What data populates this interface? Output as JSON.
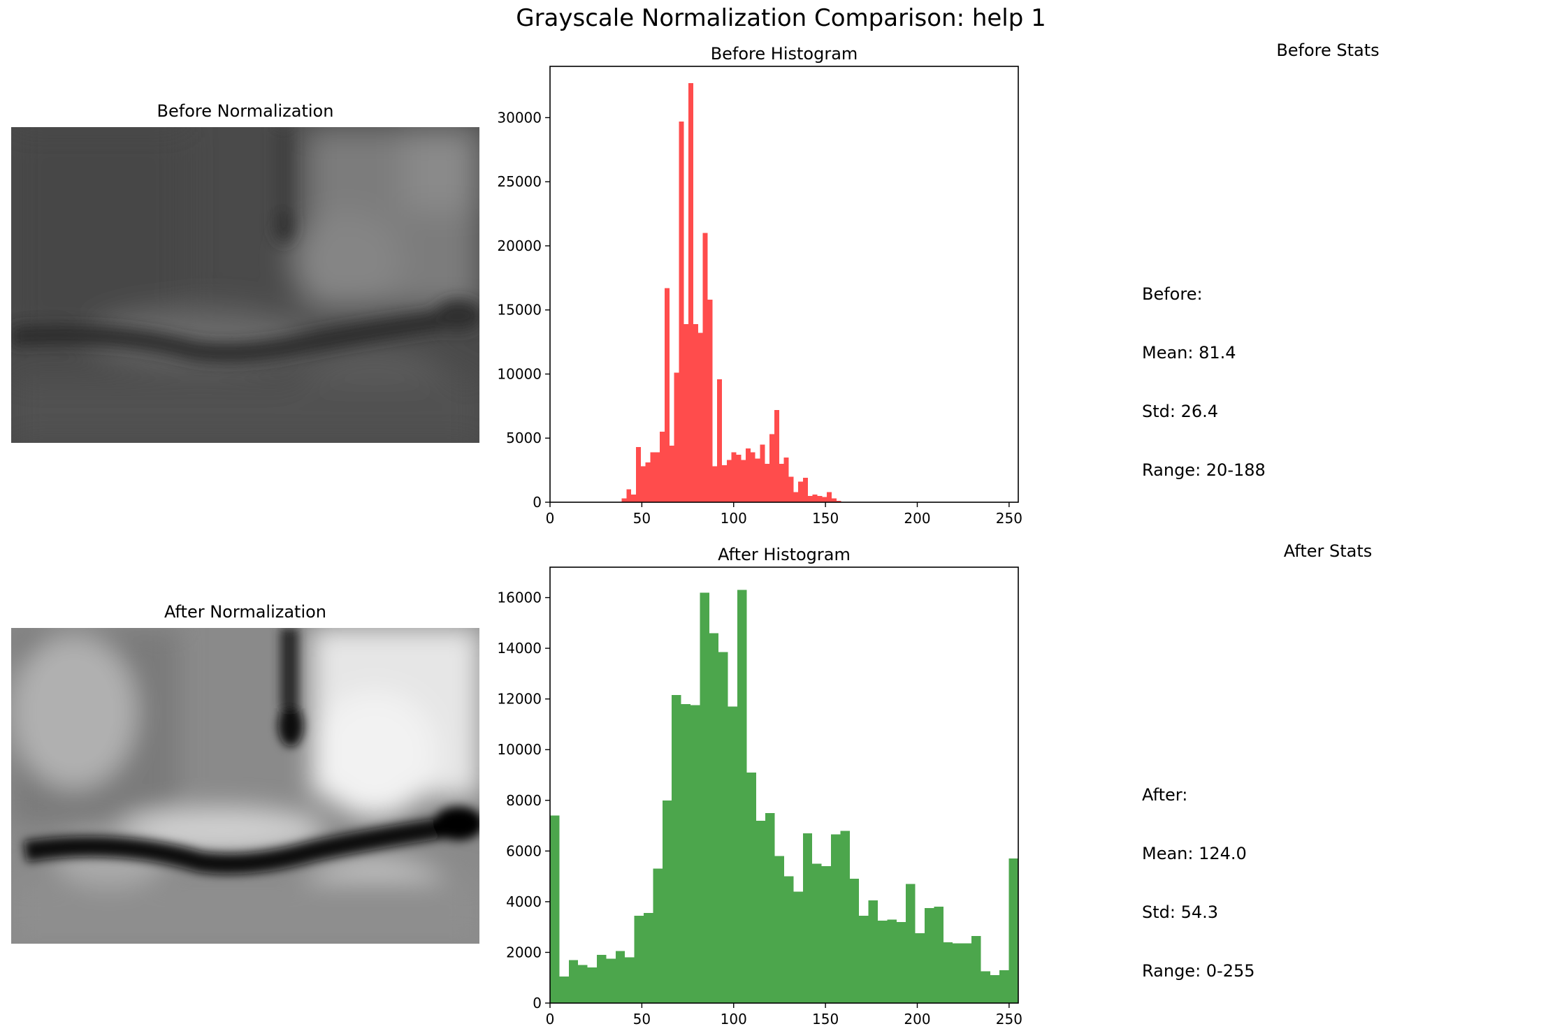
{
  "suptitle": "Grayscale Normalization Comparison: help 1",
  "panels": {
    "before_image_title": "Before Normalization",
    "after_image_title": "After Normalization",
    "before_stats_title": "Before Stats",
    "after_stats_title": "After Stats"
  },
  "stats": {
    "before": {
      "heading": "Before:",
      "mean": "Mean: 81.4",
      "std": "Std: 26.4",
      "range": "Range: 20-188"
    },
    "after": {
      "heading": "After:",
      "mean": "Mean: 124.0",
      "std": "Std: 54.3",
      "range": "Range: 0-255"
    }
  },
  "chart_data": [
    {
      "type": "bar",
      "title": "Before Histogram",
      "color": "#ff0000",
      "opacity": 0.7,
      "xlim": [
        0,
        255
      ],
      "ylim": [
        0,
        34000
      ],
      "xticks": [
        0,
        50,
        100,
        150,
        200,
        250
      ],
      "yticks": [
        0,
        5000,
        10000,
        15000,
        20000,
        25000,
        30000
      ],
      "bin_width": 2.6,
      "bins_start": [
        39.0,
        41.6,
        44.2,
        46.8,
        49.4,
        52.0,
        54.6,
        57.2,
        59.8,
        62.4,
        65.0,
        67.6,
        70.2,
        72.8,
        75.4,
        78.0,
        80.6,
        83.2,
        85.8,
        88.4,
        91.0,
        93.6,
        96.2,
        98.8,
        101.4,
        104.0,
        106.6,
        109.2,
        111.8,
        114.4,
        117.0,
        119.6,
        122.2,
        124.8,
        127.4,
        130.0,
        132.6,
        135.2,
        137.8,
        140.4,
        143.0,
        145.6,
        148.2,
        150.8,
        153.4,
        156.0
      ],
      "values": [
        300,
        1000,
        600,
        4300,
        2800,
        3100,
        3900,
        3900,
        5500,
        16700,
        4400,
        10100,
        29700,
        13900,
        32700,
        13900,
        13200,
        21000,
        15800,
        2800,
        9600,
        2900,
        3300,
        3900,
        3700,
        3300,
        4200,
        3900,
        3400,
        4500,
        3000,
        5300,
        7200,
        3000,
        3500,
        2000,
        800,
        1600,
        1900,
        500,
        600,
        500,
        400,
        800,
        300,
        100
      ]
    },
    {
      "type": "bar",
      "title": "After Histogram",
      "color": "#008000",
      "opacity": 0.7,
      "xlim": [
        0,
        255
      ],
      "ylim": [
        0,
        17200
      ],
      "xticks": [
        0,
        50,
        100,
        150,
        200,
        250
      ],
      "yticks": [
        0,
        2000,
        4000,
        6000,
        8000,
        10000,
        12000,
        14000,
        16000
      ],
      "bin_width": 5.1,
      "bins_start": [
        0.0,
        5.1,
        10.2,
        15.3,
        20.4,
        25.5,
        30.6,
        35.7,
        40.8,
        45.9,
        51.0,
        56.1,
        61.2,
        66.3,
        71.4,
        76.5,
        81.6,
        86.7,
        91.8,
        96.9,
        102.0,
        107.1,
        112.2,
        117.3,
        122.4,
        127.5,
        132.6,
        137.7,
        142.8,
        147.9,
        153.0,
        158.1,
        163.2,
        168.3,
        173.4,
        178.5,
        183.6,
        188.7,
        193.8,
        198.9,
        204.0,
        209.1,
        214.2,
        219.3,
        224.4,
        229.5,
        234.6,
        239.7,
        244.8,
        249.9
      ],
      "values": [
        7400,
        1050,
        1700,
        1500,
        1400,
        1900,
        1750,
        2050,
        1800,
        3450,
        3550,
        5300,
        8000,
        12150,
        11800,
        11750,
        16200,
        14600,
        13850,
        11700,
        16300,
        9100,
        7200,
        7500,
        5800,
        5000,
        4400,
        6700,
        5500,
        5400,
        6650,
        6800,
        4900,
        3450,
        4050,
        3250,
        3300,
        3200,
        4700,
        2750,
        3750,
        3800,
        2400,
        2350,
        2350,
        2650,
        1250,
        1100,
        1300,
        5700
      ]
    }
  ]
}
